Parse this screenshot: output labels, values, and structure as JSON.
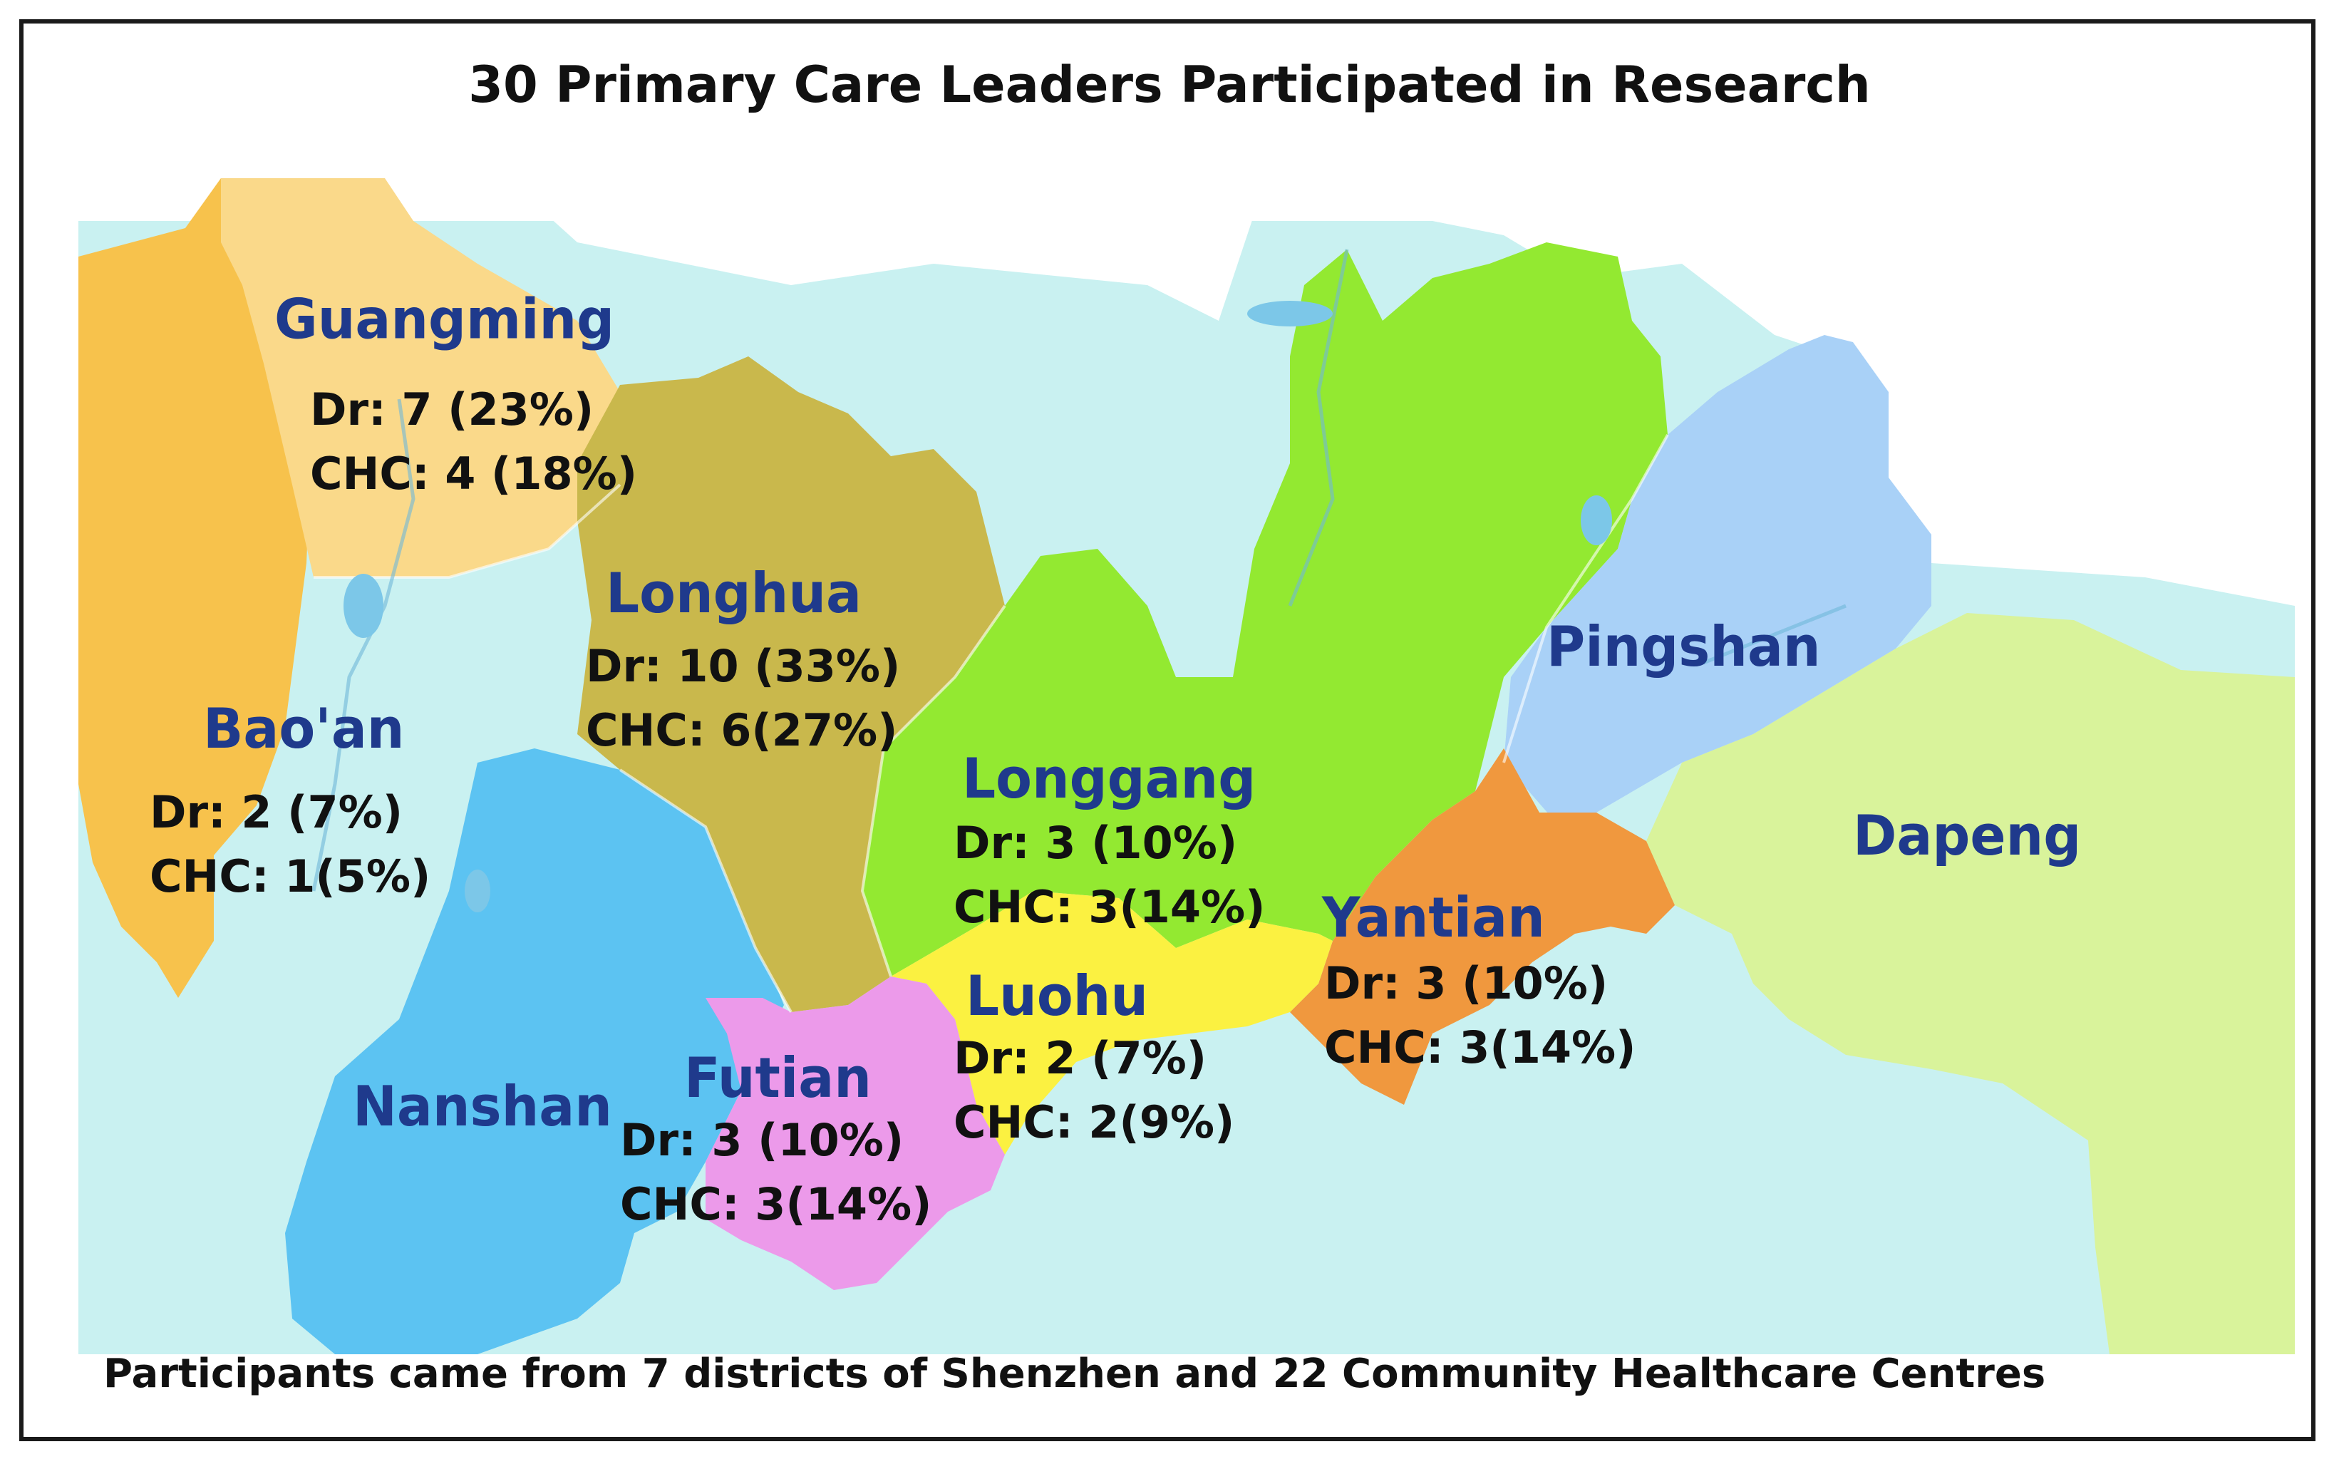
{
  "title": "30 Primary Care Leaders Participated in Research",
  "footer": "Participants came from 7 districts of Shenzhen and 22 Community Healthcare Centres",
  "colors": {
    "sea": "#c9f1f1",
    "guangming": "#fad98a",
    "baoan": "#f7c24c",
    "nanshan": "#5cc3f2",
    "longhua": "#c9b84c",
    "futian": "#ec9aea",
    "luohu": "#fbf141",
    "longgang": "#93e931",
    "yantian": "#f0983e",
    "pingshan": "#a9d1f7",
    "dapeng": "#d9f39b",
    "label": "#1f3a8c"
  },
  "districts": {
    "guangming": {
      "name": "Guangming",
      "dr": "Dr: 7 (23%)",
      "chc": "CHC: 4 (18%)"
    },
    "baoan": {
      "name": "Bao'an",
      "dr": "Dr: 2 (7%)",
      "chc": "CHC: 1(5%)"
    },
    "longhua": {
      "name": "Longhua",
      "dr": "Dr: 10 (33%)",
      "chc": "CHC: 6(27%)"
    },
    "longgang": {
      "name": "Longgang",
      "dr": "Dr: 3 (10%)",
      "chc": "CHC: 3(14%)"
    },
    "yantian": {
      "name": "Yantian",
      "dr": "Dr: 3 (10%)",
      "chc": "CHC: 3(14%)"
    },
    "luohu": {
      "name": "Luohu",
      "dr": "Dr: 2 (7%)",
      "chc": "CHC: 2(9%)"
    },
    "futian": {
      "name": "Futian",
      "dr": "Dr: 3 (10%)",
      "chc": "CHC: 3(14%)"
    },
    "nanshan": {
      "name": "Nanshan"
    },
    "pingshan": {
      "name": "Pingshan"
    },
    "dapeng": {
      "name": "Dapeng"
    }
  }
}
